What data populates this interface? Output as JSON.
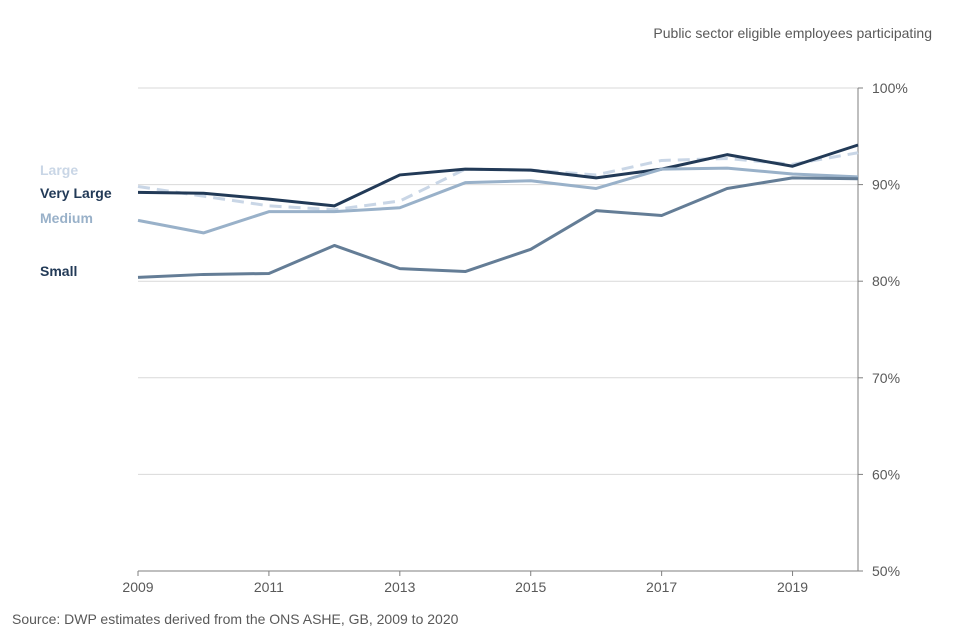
{
  "chart_data": {
    "type": "line",
    "subtitle": "Public sector eligible employees participating",
    "source": "Source: DWP estimates derived from the ONS ASHE, GB, 2009 to 2020",
    "x": [
      2009,
      2010,
      2011,
      2012,
      2013,
      2014,
      2015,
      2016,
      2017,
      2018,
      2019,
      2020
    ],
    "x_tick_labels": [
      "2009",
      "2011",
      "2013",
      "2015",
      "2017",
      "2019"
    ],
    "x_tick_values": [
      2009,
      2011,
      2013,
      2015,
      2017,
      2019
    ],
    "xlim": [
      2009,
      2020
    ],
    "ylim": [
      50,
      100
    ],
    "y_tick_values": [
      50,
      60,
      70,
      80,
      90,
      100
    ],
    "y_tick_labels": [
      "50%",
      "60%",
      "70%",
      "80%",
      "90%",
      "100%"
    ],
    "y_axis_position": "right",
    "grid": true,
    "series": [
      {
        "key": "large",
        "name": "Large",
        "color": "#c9d6e6",
        "dashed": true,
        "values": [
          89.8,
          88.8,
          87.8,
          87.4,
          88.3,
          91.6,
          91.5,
          91.0,
          92.5,
          92.7,
          92.1,
          93.3
        ]
      },
      {
        "key": "very-large",
        "name": "Very Large",
        "color": "#223a57",
        "dashed": false,
        "values": [
          89.2,
          89.1,
          88.5,
          87.8,
          91.0,
          91.6,
          91.5,
          90.7,
          91.6,
          93.1,
          91.9,
          94.1
        ]
      },
      {
        "key": "medium",
        "name": "Medium",
        "color": "#99b1c9",
        "dashed": false,
        "values": [
          86.3,
          85.0,
          87.2,
          87.2,
          87.6,
          90.2,
          90.4,
          89.6,
          91.6,
          91.7,
          91.1,
          90.8
        ]
      },
      {
        "key": "small",
        "name": "Small",
        "color": "#647d96",
        "dashed": false,
        "values": [
          80.4,
          80.7,
          80.8,
          83.7,
          81.3,
          81.0,
          83.3,
          87.3,
          86.8,
          89.6,
          90.7,
          90.6
        ]
      }
    ]
  }
}
